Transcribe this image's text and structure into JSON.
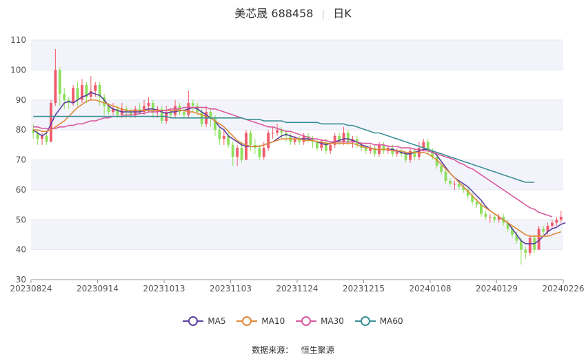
{
  "title": {
    "name": "美芯晟 688458",
    "period": "日K"
  },
  "source": {
    "label": "数据来源：",
    "name": "恒生聚源"
  },
  "legend": [
    {
      "name": "MA5",
      "color": "#5b3fa0"
    },
    {
      "name": "MA10",
      "color": "#e08a3a"
    },
    {
      "name": "MA30",
      "color": "#d9579e"
    },
    {
      "name": "MA60",
      "color": "#3a8f94"
    }
  ],
  "colors": {
    "up": "#f05b6b",
    "down": "#8de05c",
    "band": "#f3f4fb"
  },
  "chart_data": {
    "type": "candlestick",
    "ylim": [
      30,
      110
    ],
    "yticks": [
      30,
      40,
      50,
      60,
      70,
      80,
      90,
      100,
      110
    ],
    "xlabels": [
      "20230824",
      "20230914",
      "20231013",
      "20231103",
      "20231124",
      "20231215",
      "20240108",
      "20240129",
      "20240226"
    ],
    "candles": [
      [
        80,
        79,
        82,
        77
      ],
      [
        79,
        77,
        80,
        75
      ],
      [
        77,
        78,
        79,
        75
      ],
      [
        78,
        76,
        79,
        75
      ],
      [
        76,
        89,
        90,
        76
      ],
      [
        89,
        100,
        107,
        88
      ],
      [
        100,
        92,
        101,
        88
      ],
      [
        92,
        90,
        94,
        87
      ],
      [
        90,
        89,
        91,
        87
      ],
      [
        89,
        94,
        95,
        88
      ],
      [
        94,
        90,
        96,
        88
      ],
      [
        90,
        95,
        97,
        89
      ],
      [
        95,
        91,
        96,
        89
      ],
      [
        91,
        93,
        98,
        90
      ],
      [
        93,
        95,
        96,
        91
      ],
      [
        95,
        91,
        96,
        88
      ],
      [
        91,
        88,
        92,
        85
      ],
      [
        88,
        86,
        89,
        85
      ],
      [
        86,
        87,
        89,
        85
      ],
      [
        87,
        85,
        88,
        84
      ],
      [
        85,
        87,
        89,
        84
      ],
      [
        87,
        86,
        88,
        84
      ],
      [
        86,
        85,
        87,
        84
      ],
      [
        85,
        87,
        88,
        84
      ],
      [
        87,
        86,
        89,
        85
      ],
      [
        86,
        88,
        90,
        85
      ],
      [
        88,
        89,
        91,
        86
      ],
      [
        89,
        86,
        90,
        84
      ],
      [
        86,
        87,
        88,
        84
      ],
      [
        87,
        83,
        88,
        82
      ],
      [
        83,
        86,
        88,
        82
      ],
      [
        86,
        85,
        87,
        84
      ],
      [
        85,
        88,
        90,
        84
      ],
      [
        88,
        86,
        89,
        85
      ],
      [
        86,
        85,
        87,
        84
      ],
      [
        85,
        89,
        93,
        84
      ],
      [
        89,
        88,
        90,
        86
      ],
      [
        88,
        86,
        89,
        85
      ],
      [
        86,
        82,
        87,
        81
      ],
      [
        82,
        86,
        88,
        81
      ],
      [
        86,
        84,
        87,
        81
      ],
      [
        84,
        80,
        85,
        78
      ],
      [
        80,
        77,
        81,
        75
      ],
      [
        77,
        78,
        80,
        75
      ],
      [
        78,
        75,
        79,
        74
      ],
      [
        75,
        71,
        76,
        68
      ],
      [
        71,
        74,
        75,
        68
      ],
      [
        74,
        70,
        76,
        69
      ],
      [
        70,
        79,
        80,
        70
      ],
      [
        79,
        75,
        80,
        73
      ],
      [
        75,
        74,
        77,
        72
      ],
      [
        74,
        71,
        75,
        70
      ],
      [
        71,
        74,
        76,
        70
      ],
      [
        74,
        79,
        80,
        73
      ],
      [
        79,
        79,
        81,
        77
      ],
      [
        79,
        80,
        82,
        78
      ],
      [
        80,
        79,
        81,
        77
      ],
      [
        79,
        78,
        80,
        76
      ],
      [
        78,
        76,
        79,
        75
      ],
      [
        76,
        77,
        78,
        75
      ],
      [
        77,
        76,
        78,
        75
      ],
      [
        76,
        78,
        79,
        75
      ],
      [
        78,
        77,
        79,
        76
      ],
      [
        77,
        76,
        78,
        74
      ],
      [
        76,
        74,
        77,
        73
      ],
      [
        74,
        76,
        77,
        73
      ],
      [
        76,
        73,
        77,
        72
      ],
      [
        73,
        75,
        76,
        72
      ],
      [
        75,
        78,
        79,
        74
      ],
      [
        78,
        76,
        79,
        75
      ],
      [
        76,
        79,
        81,
        75
      ],
      [
        79,
        76,
        80,
        75
      ],
      [
        76,
        77,
        78,
        74
      ],
      [
        77,
        75,
        78,
        74
      ],
      [
        75,
        74,
        76,
        73
      ],
      [
        74,
        73,
        75,
        72
      ],
      [
        73,
        74,
        75,
        72
      ],
      [
        74,
        72,
        75,
        71
      ],
      [
        72,
        75,
        76,
        71
      ],
      [
        75,
        73,
        76,
        72
      ],
      [
        73,
        74,
        75,
        72
      ],
      [
        74,
        72,
        75,
        71
      ],
      [
        72,
        73,
        74,
        71
      ],
      [
        73,
        72,
        74,
        71
      ],
      [
        72,
        70,
        73,
        69
      ],
      [
        70,
        73,
        74,
        69
      ],
      [
        73,
        71,
        74,
        70
      ],
      [
        71,
        74,
        76,
        70
      ],
      [
        74,
        76,
        77,
        73
      ],
      [
        76,
        73,
        77,
        72
      ],
      [
        73,
        71,
        74,
        70
      ],
      [
        71,
        68,
        72,
        67
      ],
      [
        68,
        66,
        69,
        65
      ],
      [
        66,
        63,
        67,
        62
      ],
      [
        63,
        62,
        64,
        61
      ],
      [
        62,
        62,
        63,
        60
      ],
      [
        62,
        61,
        63,
        60
      ],
      [
        61,
        60,
        62,
        59
      ],
      [
        60,
        58,
        61,
        57
      ],
      [
        58,
        56,
        59,
        55
      ],
      [
        56,
        55,
        57,
        54
      ],
      [
        55,
        52,
        56,
        51
      ],
      [
        52,
        51,
        53,
        50
      ],
      [
        51,
        51,
        52,
        49
      ],
      [
        51,
        50,
        52,
        49
      ],
      [
        50,
        51,
        52,
        49
      ],
      [
        51,
        49,
        52,
        48
      ],
      [
        49,
        47,
        50,
        46
      ],
      [
        47,
        45,
        48,
        44
      ],
      [
        45,
        43,
        46,
        42
      ],
      [
        43,
        40,
        44,
        35
      ],
      [
        40,
        39,
        41,
        37
      ],
      [
        39,
        44,
        45,
        38
      ],
      [
        44,
        40,
        45,
        39
      ],
      [
        40,
        47,
        48,
        40
      ],
      [
        47,
        46,
        48,
        45
      ],
      [
        46,
        48,
        49,
        45
      ],
      [
        48,
        49,
        50,
        47
      ],
      [
        49,
        50,
        51,
        48
      ],
      [
        50,
        51,
        53,
        49
      ]
    ],
    "series": [
      {
        "name": "MA5",
        "values": [
          80,
          79,
          78,
          79,
          82,
          85,
          87,
          89,
          89.5,
          89,
          90,
          91,
          91.5,
          92.5,
          92,
          91.5,
          90,
          88,
          87,
          86.5,
          86,
          86,
          86,
          86,
          86,
          86.5,
          87,
          87,
          86.5,
          86,
          85.5,
          86,
          86,
          86.5,
          86.5,
          87,
          87.5,
          87,
          86,
          85,
          84,
          83,
          81,
          80,
          78,
          77,
          76,
          75,
          74.5,
          74.5,
          74.5,
          74.5,
          75,
          75.5,
          76,
          77,
          78,
          78.5,
          78,
          77.5,
          77,
          77,
          77,
          76.5,
          76,
          75.5,
          75,
          75.5,
          76,
          76.5,
          77,
          77,
          76.5,
          76,
          75,
          74.5,
          74,
          73.5,
          73.5,
          73.5,
          73.5,
          73.5,
          73,
          72.5,
          72,
          72,
          72.5,
          73,
          73.5,
          73.5,
          73,
          71.5,
          69.5,
          67.5,
          65.5,
          64,
          63,
          62,
          61,
          59.5,
          58,
          56.5,
          54.5,
          53,
          52,
          51,
          50,
          49,
          47,
          45,
          43,
          42,
          42,
          42,
          43,
          44.5,
          46,
          47,
          47.5,
          48.5,
          49
        ]
      },
      {
        "name": "MA10",
        "values": [
          80,
          80,
          79.5,
          79.5,
          80,
          81,
          82,
          83,
          84.5,
          86,
          87.5,
          88.5,
          89.5,
          90,
          90,
          89.5,
          89,
          88.5,
          88,
          87.5,
          87,
          86.5,
          86.5,
          86.5,
          86.5,
          86.5,
          86.5,
          86.5,
          86.5,
          86.5,
          86.5,
          86.5,
          86.5,
          86.5,
          86.5,
          86,
          86,
          85.5,
          85,
          84.5,
          84,
          83,
          82,
          81,
          79.5,
          78,
          76.5,
          75.5,
          75,
          74.5,
          74.5,
          74.5,
          75,
          75.5,
          76,
          76.5,
          77,
          77,
          77,
          77,
          77,
          76.5,
          76.5,
          76.5,
          76,
          76,
          75.5,
          75.5,
          75.5,
          75.5,
          75.5,
          75.5,
          75.5,
          75,
          74.5,
          74,
          74,
          73.5,
          73.5,
          73.5,
          73.5,
          73,
          73,
          73,
          72.5,
          72.5,
          72.5,
          72.5,
          72.5,
          72,
          71,
          70,
          68.5,
          67,
          65.5,
          64,
          62.5,
          61,
          59.5,
          58,
          56.5,
          55,
          54,
          53,
          52,
          51,
          50,
          49,
          48,
          47,
          46,
          45,
          44.5,
          44.5,
          44.5,
          44.5,
          44.5,
          45,
          45.5,
          46
        ]
      },
      {
        "name": "MA30",
        "values": [
          81,
          81,
          80.5,
          80.5,
          80.5,
          80.5,
          81,
          81,
          81.5,
          81.5,
          82,
          82,
          82.5,
          83,
          83,
          83.5,
          84,
          84,
          84.5,
          84.5,
          84.5,
          85,
          85,
          85,
          85.5,
          85.5,
          86,
          86,
          86,
          86.5,
          86.5,
          87,
          87,
          87,
          87.5,
          87.5,
          87.5,
          87.5,
          87.5,
          87.5,
          87,
          87,
          86.5,
          86,
          85.5,
          85,
          84.5,
          84,
          83.5,
          83,
          82.5,
          82,
          81.5,
          81,
          81,
          80.5,
          80,
          79.5,
          79.5,
          79,
          78.5,
          78,
          77.5,
          77,
          77,
          76.5,
          76.5,
          76,
          76,
          76,
          76,
          76,
          76,
          76,
          75.5,
          75.5,
          75.5,
          75,
          75,
          75,
          74.5,
          74.5,
          74.5,
          74,
          74,
          74,
          73.5,
          73.5,
          73,
          73,
          72.5,
          72,
          71.5,
          71,
          70.5,
          70,
          69,
          68.5,
          67.5,
          67,
          66,
          65,
          64,
          63,
          62,
          61,
          60,
          59,
          58,
          57,
          56,
          55,
          54,
          53.5,
          52.5,
          52,
          51.5,
          51
        ]
      },
      {
        "name": "MA60",
        "values": [
          84.5,
          84.5,
          84.5,
          84.5,
          84.5,
          84.5,
          84.5,
          84.5,
          84.5,
          84.5,
          84.5,
          84.5,
          84.5,
          84.5,
          84.5,
          84.5,
          84.5,
          84.5,
          84.5,
          84.5,
          84.5,
          84.5,
          84.5,
          84.5,
          84.5,
          84.5,
          84.5,
          84.5,
          84.5,
          84.5,
          84.5,
          84,
          84,
          84,
          84,
          84,
          84,
          84,
          84,
          84,
          84,
          84,
          84,
          84,
          84,
          84,
          84,
          84,
          83.5,
          83.5,
          83.5,
          83.5,
          83,
          83,
          83,
          83,
          83,
          82.5,
          82.5,
          82.5,
          82.5,
          82.5,
          82.5,
          82.5,
          82.5,
          82,
          82,
          82,
          82,
          82,
          82,
          81.5,
          81.5,
          81,
          80.5,
          80,
          79.5,
          79,
          79,
          78.5,
          78,
          77.5,
          77,
          76.5,
          76,
          75.5,
          75,
          74.5,
          74,
          73.5,
          73,
          72.5,
          72,
          71.5,
          71,
          70.5,
          70,
          69.5,
          69,
          68.5,
          68,
          67.5,
          67,
          66.5,
          66,
          65.5,
          65,
          64.5,
          64,
          63.5,
          63,
          62.5,
          62.5,
          62.5
        ]
      }
    ]
  }
}
